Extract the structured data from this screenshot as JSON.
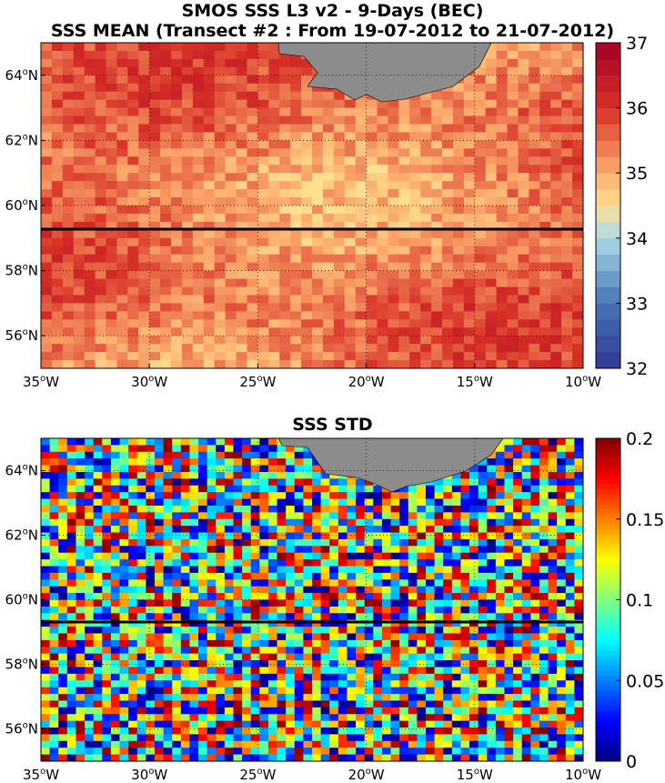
{
  "chart_data": [
    {
      "type": "heatmap",
      "title": "SMOS SSS L3 v2 - 9-Days (BEC)",
      "subtitle": "SSS MEAN (Transect #2 : From 19-07-2012 to 21-07-2012)",
      "x_range_lon": [
        -35,
        -10
      ],
      "y_range_lat": [
        55,
        65
      ],
      "x_tick_values": [
        -35,
        -30,
        -25,
        -20,
        -15,
        -10
      ],
      "x_tick_labels": [
        "35oW",
        "30oW",
        "25oW",
        "20oW",
        "15oW",
        "10oW"
      ],
      "y_tick_values": [
        56,
        58,
        60,
        62,
        64
      ],
      "y_tick_labels": [
        "56oN",
        "58oN",
        "60oN",
        "62oN",
        "64oN"
      ],
      "colorbar": {
        "min": 32,
        "max": 37,
        "colormap": "blue-white-red",
        "tick_values": [
          32,
          33,
          34,
          35,
          36,
          37
        ],
        "tick_labels": [
          "32",
          "33",
          "34",
          "35",
          "36",
          "37"
        ]
      },
      "typical_value_range": [
        34.5,
        36.3
      ],
      "land_color": "#8c8c8c",
      "transect_latitude": 59.5,
      "grid": true
    },
    {
      "type": "heatmap",
      "title": "SSS STD",
      "x_range_lon": [
        -35,
        -10
      ],
      "y_range_lat": [
        55,
        65
      ],
      "x_tick_values": [
        -35,
        -30,
        -25,
        -20,
        -15,
        -10
      ],
      "x_tick_labels": [
        "35oW",
        "30oW",
        "25oW",
        "20oW",
        "15oW",
        "10oW"
      ],
      "y_tick_values": [
        56,
        58,
        60,
        62,
        64
      ],
      "y_tick_labels": [
        "56oN",
        "58oN",
        "60oN",
        "62oN",
        "64oN"
      ],
      "colorbar": {
        "min": 0,
        "max": 0.2,
        "colormap": "jet",
        "tick_values": [
          0,
          0.05,
          0.1,
          0.15,
          0.2
        ],
        "tick_labels": [
          "0",
          "0.05",
          "0.1",
          "0.15",
          "0.2"
        ]
      },
      "typical_value_range": [
        0,
        0.2
      ],
      "land_color": "#8c8c8c",
      "transect_latitude": 59.5,
      "grid": true
    }
  ]
}
